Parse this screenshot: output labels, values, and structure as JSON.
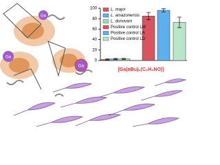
{
  "chart_data": {
    "type": "bar",
    "categories": [
      null
    ],
    "series": [
      {
        "name": "L. major",
        "color": "#d9545f",
        "values": [
          2
        ],
        "errors": [
          1
        ]
      },
      {
        "name": "L. amazonensis",
        "color": "#5bb0ee",
        "values": [
          3
        ],
        "errors": [
          1
        ]
      },
      {
        "name": "L. donovani",
        "color": "#9fdcb6",
        "values": [
          3
        ],
        "errors": [
          1
        ]
      },
      {
        "name": "Positive control LM",
        "color": "#d9545f",
        "values": [
          85
        ],
        "errors": [
          7
        ]
      },
      {
        "name": "Positive control LA",
        "color": "#5bb0ee",
        "values": [
          96
        ],
        "errors": [
          3
        ]
      },
      {
        "name": "Positive control LD",
        "color": "#b9e6c8",
        "values": [
          73
        ],
        "errors": [
          10
        ]
      }
    ],
    "x_label": "[Ga(nBu)₂(C₈H₆NO)]",
    "ylim": [
      0,
      100
    ],
    "yticks": [
      0,
      20,
      40,
      60,
      80,
      100
    ],
    "legend": "upper left"
  },
  "illustration": {
    "labels": [
      "Ga",
      "Ga",
      "Ga"
    ]
  }
}
